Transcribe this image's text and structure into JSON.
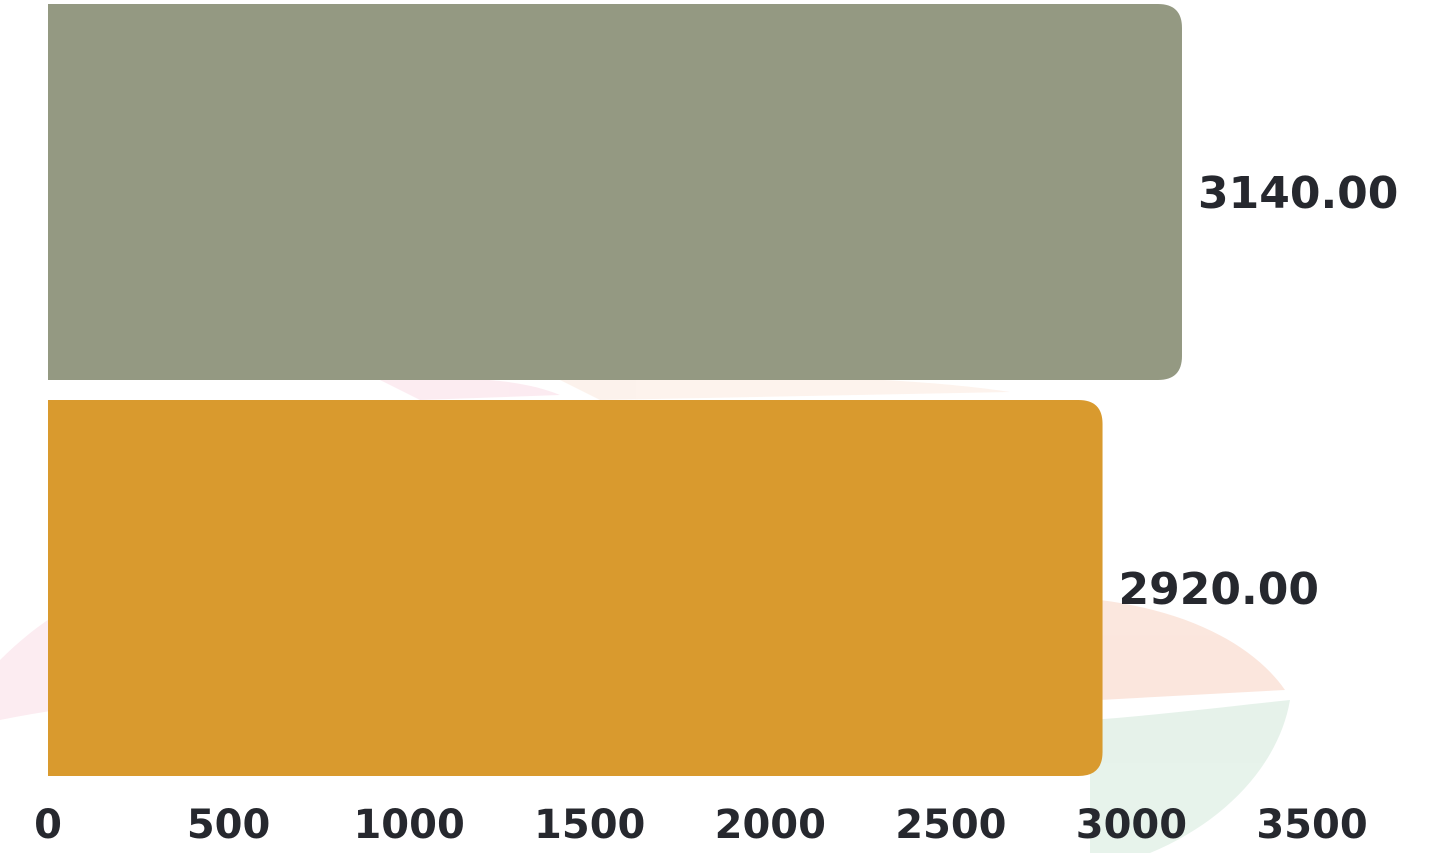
{
  "chart_data": {
    "type": "bar",
    "orientation": "horizontal",
    "categories": [
      "",
      ""
    ],
    "values": [
      3140,
      2920
    ],
    "value_labels": [
      "3140.00",
      "2920.00"
    ],
    "colors": [
      "#949982",
      "#d99a2e"
    ],
    "xlim": [
      0,
      3500
    ],
    "x_ticks": [
      0,
      500,
      1000,
      1500,
      2000,
      2500,
      3000,
      3500
    ],
    "x_tick_labels": [
      "0",
      "500",
      "1000",
      "1500",
      "2000",
      "2500",
      "3000",
      "3500"
    ],
    "grid": false,
    "legend": "none",
    "title": "",
    "xlabel": "",
    "ylabel": ""
  }
}
